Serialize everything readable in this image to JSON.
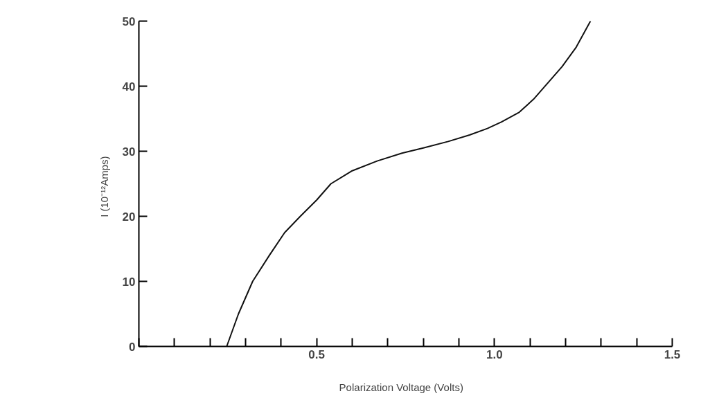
{
  "chart_data": {
    "type": "line",
    "xlabel": "Polarization  Voltage   (Volts)",
    "ylabel": "I   (10⁻¹²Amps)",
    "x": [
      0.247,
      0.28,
      0.32,
      0.367,
      0.41,
      0.454,
      0.5,
      0.54,
      0.6,
      0.67,
      0.74,
      0.8,
      0.87,
      0.93,
      0.98,
      1.02,
      1.07,
      1.11,
      1.15,
      1.19,
      1.23,
      1.27
    ],
    "series": [
      {
        "color": "#111111",
        "values": [
          0,
          5,
          10,
          14,
          17.5,
          20,
          22.5,
          25,
          27,
          28.5,
          29.7,
          30.5,
          31.5,
          32.5,
          33.5,
          34.5,
          36,
          38,
          40.5,
          43,
          46,
          50
        ]
      }
    ],
    "xlim": [
      0,
      1.5
    ],
    "ylim": [
      0,
      50
    ],
    "xticks": [
      {
        "value": 0,
        "label": null
      },
      {
        "value": 0.1,
        "label": null
      },
      {
        "value": 0.2,
        "label": null
      },
      {
        "value": 0.3,
        "label": null
      },
      {
        "value": 0.4,
        "label": null
      },
      0.5,
      {
        "value": 0.6,
        "label": null
      },
      {
        "value": 0.7,
        "label": null
      },
      {
        "value": 0.8,
        "label": null
      },
      {
        "value": 0.9,
        "label": null
      },
      {
        "value": 1.0,
        "label": "1.0"
      },
      {
        "value": 1.1,
        "label": null
      },
      {
        "value": 1.2,
        "label": null
      },
      {
        "value": 1.3,
        "label": null
      },
      {
        "value": 1.4,
        "label": null
      },
      1.5
    ],
    "yticks": [
      0,
      10,
      20,
      30,
      40,
      50
    ],
    "grid": false,
    "marker": "none",
    "line_style": "solid"
  }
}
